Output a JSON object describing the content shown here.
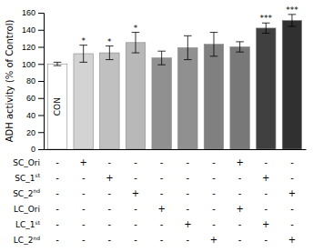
{
  "chart_data": {
    "type": "bar",
    "ylabel": "ADH activity (% of Control)",
    "categories": [
      null,
      null,
      null,
      null,
      null,
      null,
      null,
      null,
      null,
      null
    ],
    "values": [
      100,
      112,
      113,
      125,
      107,
      119,
      123,
      120,
      142,
      151
    ],
    "errors": [
      2,
      10,
      8,
      12,
      8,
      14,
      14,
      6,
      6,
      7
    ],
    "colors": [
      "#ffffff",
      "#d3d3d3",
      "#c0c0c0",
      "#b8b8b8",
      "#909090",
      "#909090",
      "#808080",
      "#787878",
      "#404040",
      "#303030"
    ],
    "significance": [
      null,
      "*",
      "*",
      "*",
      null,
      null,
      null,
      null,
      "***",
      "***"
    ],
    "bar_labels": [
      "CON",
      null,
      null,
      null,
      null,
      null,
      null,
      null,
      null,
      null
    ],
    "ylim": [
      0,
      160
    ],
    "yticks": [
      0,
      20,
      40,
      60,
      80,
      100,
      120,
      140,
      160
    ],
    "table": {
      "row_labels": [
        "SC_Ori",
        "SC_1",
        "SC_2",
        "LC_Ori",
        "LC_1",
        "LC_2"
      ],
      "row_superscripts": [
        null,
        "st",
        "nd",
        null,
        "st",
        "nd"
      ],
      "cells": [
        [
          "-",
          "+",
          "-",
          "-",
          "-",
          "-",
          "-",
          "+",
          "-",
          "-"
        ],
        [
          "-",
          "-",
          "+",
          "-",
          "-",
          "-",
          "-",
          "-",
          "+",
          "-"
        ],
        [
          "-",
          "-",
          "-",
          "+",
          "-",
          "-",
          "-",
          "-",
          "-",
          "+"
        ],
        [
          "-",
          "-",
          "-",
          "-",
          "+",
          "-",
          "-",
          "+",
          "-",
          "-"
        ],
        [
          "-",
          "-",
          "-",
          "-",
          "-",
          "+",
          "-",
          "-",
          "+",
          "-"
        ],
        [
          "-",
          "-",
          "-",
          "-",
          "-",
          "-",
          "+",
          "-",
          "-",
          "+"
        ]
      ]
    }
  }
}
